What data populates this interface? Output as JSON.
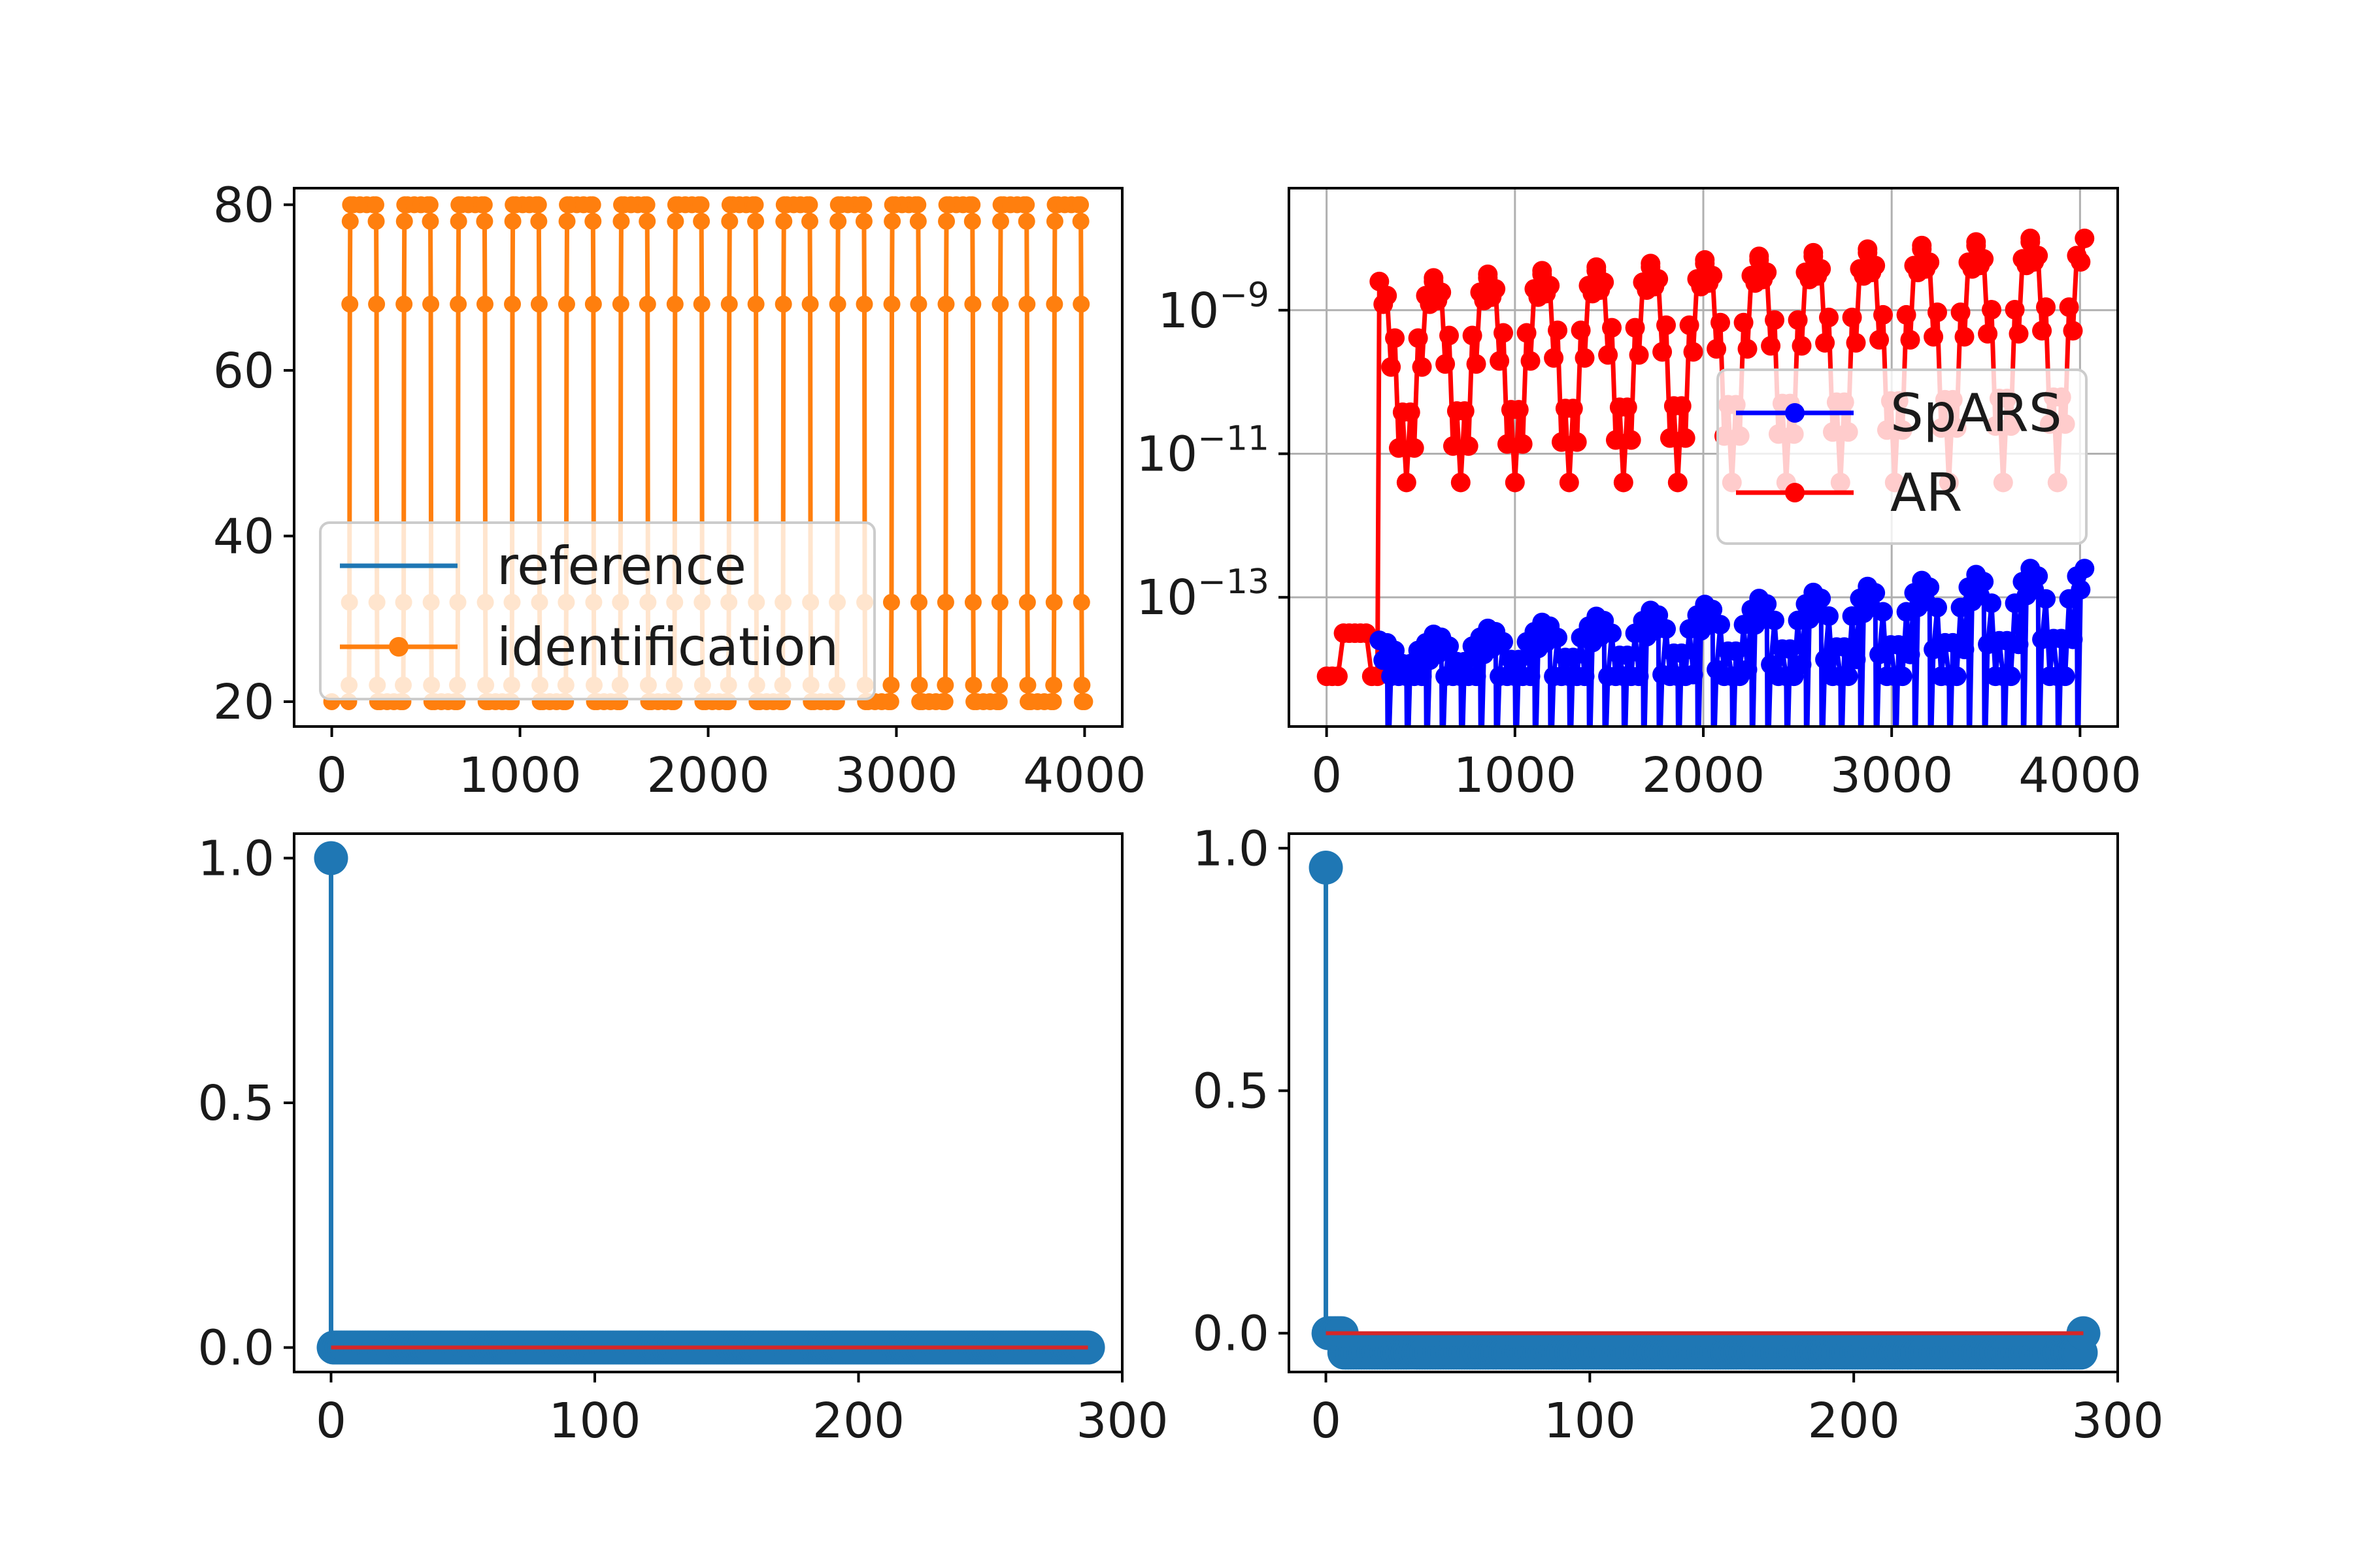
{
  "chart_data": [
    {
      "type": "line",
      "panel": "top-left",
      "title": "",
      "xlabel": "",
      "ylabel": "",
      "xlim": [
        -200,
        4200
      ],
      "ylim": [
        17,
        82
      ],
      "xticks": [
        0,
        1000,
        2000,
        3000,
        4000
      ],
      "yticks": [
        20,
        40,
        60,
        80
      ],
      "x_tick_labels": [
        "0",
        "1000",
        "2000",
        "3000",
        "4000"
      ],
      "y_tick_labels": [
        "20",
        "40",
        "60",
        "80"
      ],
      "grid": false,
      "legend": {
        "position": "lower-left",
        "entries": [
          {
            "label": "reference",
            "color": "#1f77b4",
            "marker": false
          },
          {
            "label": "identification",
            "color": "#ff7f0e",
            "marker": true
          }
        ]
      },
      "pulse": {
        "low": 20,
        "high": 80,
        "transition_values": [
          20,
          22,
          32,
          68,
          78,
          80
        ],
        "period": 288,
        "high_width": 144,
        "first_rise": 90,
        "count": 14,
        "x_max": 4000
      },
      "series": [
        {
          "name": "reference",
          "color": "#1f77b4",
          "marker": false
        },
        {
          "name": "identification",
          "color": "#ff7f0e",
          "marker": true
        }
      ]
    },
    {
      "type": "line",
      "panel": "top-right",
      "title": "",
      "xlabel": "",
      "ylabel": "",
      "yscale": "log",
      "xlim": [
        -200,
        4200
      ],
      "ylim_log10": [
        -14.8,
        -7.3
      ],
      "xticks": [
        0,
        1000,
        2000,
        3000,
        4000
      ],
      "x_tick_labels": [
        "0",
        "1000",
        "2000",
        "3000",
        "4000"
      ],
      "yticks_log10": [
        -9,
        -11,
        -13
      ],
      "y_tick_labels": [
        {
          "base": "10",
          "exp": "−9"
        },
        {
          "base": "10",
          "exp": "−11"
        },
        {
          "base": "10",
          "exp": "−13"
        }
      ],
      "grid": true,
      "legend": {
        "position": "right",
        "entries": [
          {
            "label": "SpARS",
            "color": "#0000ff",
            "marker": true
          },
          {
            "label": "AR",
            "color": "#ff0000",
            "marker": true
          }
        ]
      },
      "series": [
        {
          "name": "AR",
          "color": "#ff0000",
          "early_segment": {
            "x_start": 0,
            "x_end": 270,
            "log10_level": -14.1,
            "bump_log10": -13.5,
            "bump_x": [
              80,
              220
            ]
          },
          "jump_at": 280,
          "cycles": {
            "count": 13,
            "start": 280,
            "period": 288,
            "peak_log10_start": -8.6,
            "peak_log10_end": -8.0,
            "trough_log10": -11.4
          }
        },
        {
          "name": "SpARS",
          "color": "#0000ff",
          "start": 280,
          "cycles": {
            "count": 13,
            "period": 288,
            "peak_log10_start": -13.6,
            "peak_log10_end": -12.6,
            "trough_log10": -14.1
          },
          "drop_below_axis": true
        }
      ]
    },
    {
      "type": "stem",
      "panel": "bottom-left",
      "title": "",
      "xlabel": "",
      "ylabel": "",
      "xlim": [
        -14,
        300
      ],
      "ylim": [
        -0.05,
        1.05
      ],
      "xticks": [
        0,
        100,
        200,
        300
      ],
      "yticks": [
        0.0,
        0.5,
        1.0
      ],
      "x_tick_labels": [
        "0",
        "100",
        "200",
        "300"
      ],
      "y_tick_labels": [
        "0.0",
        "0.5",
        "1.0"
      ],
      "grid": false,
      "n": 288,
      "values": [
        {
          "x": 0,
          "y": 1.0
        }
      ],
      "rest_value": 0.0,
      "color": "#1f77b4",
      "baseline_color": "#d62728"
    },
    {
      "type": "stem",
      "panel": "bottom-right",
      "title": "",
      "xlabel": "",
      "ylabel": "",
      "xlim": [
        -14,
        300
      ],
      "ylim": [
        -0.08,
        1.03
      ],
      "xticks": [
        0,
        100,
        200,
        300
      ],
      "yticks": [
        0.0,
        0.5,
        1.0
      ],
      "x_tick_labels": [
        "0",
        "100",
        "200",
        "300"
      ],
      "y_tick_labels": [
        "0.0",
        "0.5",
        "1.0"
      ],
      "grid": false,
      "n": 288,
      "values": [
        {
          "x": 0,
          "y": 0.96
        },
        {
          "x": 1,
          "y": 0.0
        }
      ],
      "rest_value": -0.04,
      "rest_value_near_zero": 0.0,
      "color": "#1f77b4",
      "baseline_color": "#d62728"
    }
  ]
}
